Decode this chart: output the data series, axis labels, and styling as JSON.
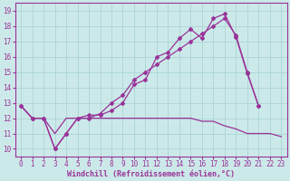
{
  "bg_color": "#cce9e9",
  "grid_color": "#aad4d4",
  "line_color": "#993399",
  "xlabel": "Windchill (Refroidissement éolien,°C)",
  "xlabel_fontsize": 6.0,
  "tick_fontsize": 5.5,
  "xlim": [
    -0.5,
    23.5
  ],
  "ylim": [
    9.5,
    19.5
  ],
  "xticks": [
    0,
    1,
    2,
    3,
    4,
    5,
    6,
    7,
    8,
    9,
    10,
    11,
    12,
    13,
    14,
    15,
    16,
    17,
    18,
    19,
    20,
    21,
    22,
    23
  ],
  "yticks": [
    10,
    11,
    12,
    13,
    14,
    15,
    16,
    17,
    18,
    19
  ],
  "line1_x": [
    0,
    1,
    2,
    3,
    4,
    5,
    6,
    7,
    8,
    9,
    10,
    11,
    12,
    13,
    14,
    15,
    16,
    17,
    18,
    19,
    20,
    21,
    22,
    23
  ],
  "line1_y": [
    12.8,
    12.0,
    12.0,
    11.0,
    12.0,
    12.0,
    12.0,
    12.0,
    12.0,
    12.0,
    12.0,
    12.0,
    12.0,
    12.0,
    12.0,
    12.0,
    11.8,
    11.8,
    11.5,
    11.3,
    11.0,
    11.0,
    11.0,
    10.8
  ],
  "line2_x": [
    0,
    1,
    2,
    3,
    4,
    5,
    6,
    7,
    8,
    9,
    10,
    11,
    12,
    13,
    14,
    15,
    16,
    17,
    18,
    19,
    20,
    21,
    22,
    23
  ],
  "line2_y": [
    12.8,
    12.0,
    12.0,
    10.0,
    11.0,
    12.0,
    12.2,
    12.2,
    12.5,
    13.0,
    14.2,
    14.5,
    16.0,
    16.3,
    17.2,
    17.8,
    17.2,
    18.5,
    18.8,
    17.3,
    14.9,
    12.8,
    null,
    null
  ],
  "line3_x": [
    0,
    1,
    2,
    3,
    4,
    5,
    6,
    7,
    8,
    9,
    10,
    11,
    12,
    13,
    14,
    15,
    16,
    17,
    18,
    19,
    20,
    21,
    22,
    23
  ],
  "line3_y": [
    12.8,
    12.0,
    12.0,
    10.0,
    11.0,
    12.0,
    12.0,
    12.3,
    13.0,
    13.5,
    14.5,
    15.0,
    15.5,
    16.0,
    16.5,
    17.0,
    17.5,
    18.0,
    18.5,
    17.4,
    15.0,
    12.8,
    null,
    null
  ]
}
